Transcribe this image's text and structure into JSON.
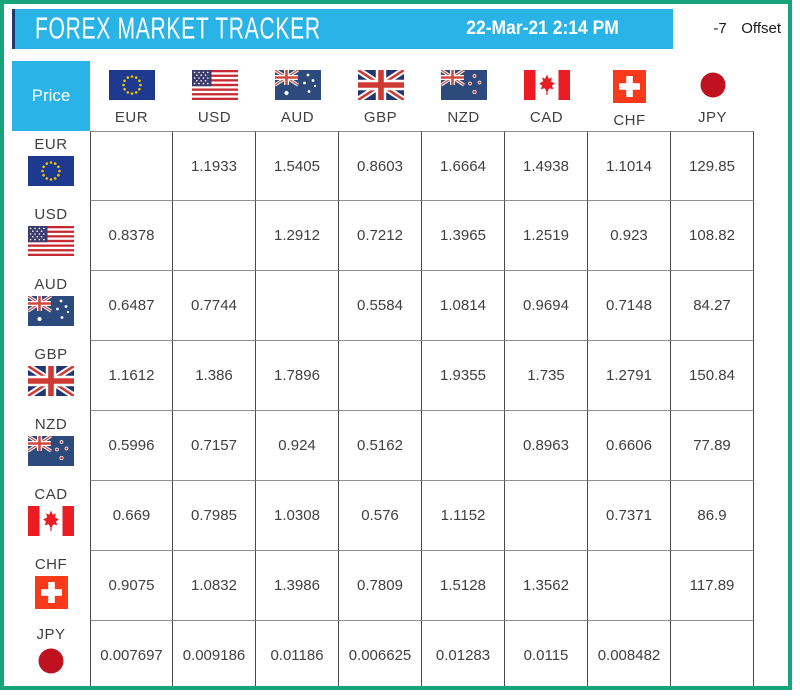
{
  "colors": {
    "accent_cyan": "#29b3e6",
    "frame_teal": "#17a47b",
    "titlebar_edge_navy": "#1e3a66",
    "grid_vertical": "#4a4a4a",
    "grid_horizontal": "#8f8f8f",
    "value_text": "#404040"
  },
  "header": {
    "title": "FOREX MARKET TRACKER",
    "datetime": "22-Mar-21 2:14 PM",
    "offset_value": "-7",
    "offset_label": "Offset"
  },
  "table": {
    "corner_label": "Price",
    "currencies": [
      "EUR",
      "USD",
      "AUD",
      "GBP",
      "NZD",
      "CAD",
      "CHF",
      "JPY"
    ],
    "flag_icons": [
      "eu-flag-icon",
      "us-flag-icon",
      "australia-flag-icon",
      "uk-flag-icon",
      "new-zealand-flag-icon",
      "canada-flag-icon",
      "switzerland-flag-icon",
      "japan-flag-icon"
    ],
    "matrix": [
      [
        null,
        "1.1933",
        "1.5405",
        "0.8603",
        "1.6664",
        "1.4938",
        "1.1014",
        "129.85"
      ],
      [
        "0.8378",
        null,
        "1.2912",
        "0.7212",
        "1.3965",
        "1.2519",
        "0.923",
        "108.82"
      ],
      [
        "0.6487",
        "0.7744",
        null,
        "0.5584",
        "1.0814",
        "0.9694",
        "0.7148",
        "84.27"
      ],
      [
        "1.1612",
        "1.386",
        "1.7896",
        null,
        "1.9355",
        "1.735",
        "1.2791",
        "150.84"
      ],
      [
        "0.5996",
        "0.7157",
        "0.924",
        "0.5162",
        null,
        "0.8963",
        "0.6606",
        "77.89"
      ],
      [
        "0.669",
        "0.7985",
        "1.0308",
        "0.576",
        "1.1152",
        null,
        "0.7371",
        "86.9"
      ],
      [
        "0.9075",
        "1.0832",
        "1.3986",
        "0.7809",
        "1.5128",
        "1.3562",
        null,
        "117.89"
      ],
      [
        "0.007697",
        "0.009186",
        "0.01186",
        "0.006625",
        "0.01283",
        "0.0115",
        "0.008482",
        null
      ]
    ]
  }
}
